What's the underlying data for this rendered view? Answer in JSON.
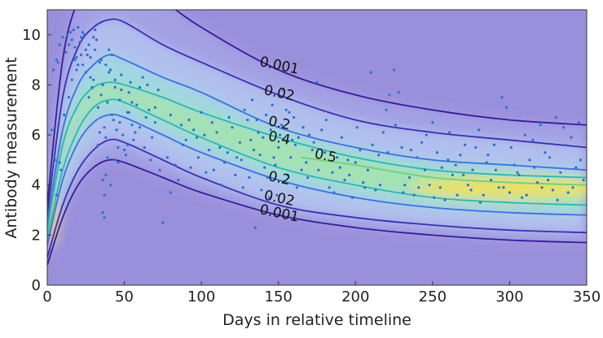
{
  "chart_data": {
    "type": "heatmap",
    "title": "",
    "xlabel": "Days in relative timeline",
    "ylabel": "Antibody measurement",
    "xlim": [
      0,
      350
    ],
    "ylim": [
      0,
      11
    ],
    "xticks": [
      0,
      50,
      100,
      150,
      200,
      250,
      300,
      350
    ],
    "yticks": [
      0,
      2,
      4,
      6,
      8,
      10
    ],
    "grid": false,
    "colors": {
      "background": "#9a8fdb",
      "level_0.001": "#3b1a9a",
      "level_0.02": "#3a2fb0",
      "level_0.2": "#3d6fe0",
      "level_0.4": "#29b8b0",
      "level_0.5": "#6fd07a",
      "density_peak": "#f4e05a",
      "points": "#2a6fd0"
    },
    "series": [
      {
        "name": "0.001",
        "type": "contour",
        "side": "upper",
        "x": [
          0,
          10,
          20,
          30,
          40,
          50,
          75,
          100,
          150,
          200,
          250,
          300,
          350
        ],
        "y": [
          3.2,
          9.0,
          11.4,
          12.4,
          12.8,
          12.6,
          11.4,
          10.3,
          8.6,
          7.6,
          7.0,
          6.6,
          6.4
        ]
      },
      {
        "name": "0.02",
        "type": "contour",
        "side": "upper",
        "x": [
          0,
          10,
          20,
          30,
          40,
          50,
          75,
          100,
          150,
          200,
          250,
          300,
          350
        ],
        "y": [
          2.8,
          7.5,
          9.5,
          10.3,
          10.6,
          10.5,
          9.6,
          8.9,
          7.6,
          6.6,
          6.1,
          5.8,
          5.5
        ]
      },
      {
        "name": "0.2",
        "type": "contour",
        "side": "upper",
        "x": [
          0,
          10,
          20,
          30,
          40,
          50,
          75,
          100,
          150,
          200,
          250,
          300,
          350
        ],
        "y": [
          2.5,
          6.2,
          8.0,
          8.8,
          9.2,
          9.0,
          8.3,
          7.7,
          6.3,
          5.5,
          5.0,
          4.8,
          4.6
        ]
      },
      {
        "name": "0.4",
        "type": "contour",
        "side": "upper",
        "x": [
          0,
          10,
          20,
          30,
          40,
          50,
          75,
          100,
          150,
          200,
          250,
          300,
          350
        ],
        "y": [
          2.2,
          5.6,
          7.2,
          7.9,
          8.1,
          8.0,
          7.5,
          6.9,
          5.9,
          5.1,
          4.6,
          4.4,
          4.3
        ]
      },
      {
        "name": "0.5",
        "type": "contour",
        "side": "core",
        "x": [
          165,
          200,
          250,
          300,
          350
        ],
        "y": [
          5.1,
          4.8,
          4.3,
          4.1,
          4.0
        ]
      },
      {
        "name": "0.4",
        "type": "contour",
        "side": "lower",
        "x": [
          0,
          10,
          20,
          30,
          40,
          50,
          75,
          100,
          150,
          200,
          250,
          300,
          350
        ],
        "y": [
          1.9,
          4.6,
          6.2,
          7.1,
          7.4,
          7.3,
          6.6,
          5.9,
          4.7,
          4.0,
          3.5,
          3.3,
          3.2
        ]
      },
      {
        "name": "0.2",
        "type": "contour",
        "side": "lower",
        "x": [
          0,
          10,
          20,
          30,
          40,
          50,
          75,
          100,
          150,
          200,
          250,
          300,
          350
        ],
        "y": [
          1.6,
          4.2,
          5.7,
          6.5,
          6.8,
          6.7,
          6.0,
          5.3,
          4.2,
          3.5,
          3.1,
          2.9,
          2.8
        ]
      },
      {
        "name": "0.02",
        "type": "contour",
        "side": "lower",
        "x": [
          0,
          10,
          20,
          30,
          40,
          50,
          75,
          100,
          150,
          200,
          250,
          300,
          350
        ],
        "y": [
          1.1,
          3.2,
          4.6,
          5.4,
          5.8,
          5.7,
          5.0,
          4.3,
          3.2,
          2.7,
          2.4,
          2.2,
          2.1
        ]
      },
      {
        "name": "0.001",
        "type": "contour",
        "side": "lower",
        "x": [
          0,
          10,
          20,
          30,
          40,
          50,
          75,
          100,
          150,
          200,
          250,
          300,
          350
        ],
        "y": [
          0.8,
          2.7,
          4.0,
          4.7,
          5.0,
          4.9,
          4.3,
          3.7,
          2.8,
          2.3,
          2.0,
          1.8,
          1.7
        ]
      }
    ],
    "contour_labels": [
      {
        "text": "0.001",
        "x": 150,
        "y": 8.6
      },
      {
        "text": "0.02",
        "x": 150,
        "y": 7.5
      },
      {
        "text": "0.2",
        "x": 150,
        "y": 6.3
      },
      {
        "text": "0.4",
        "x": 150,
        "y": 5.7
      },
      {
        "text": "0.5",
        "x": 180,
        "y": 5.0
      },
      {
        "text": "0.2",
        "x": 150,
        "y": 4.1
      },
      {
        "text": "0.02",
        "x": 150,
        "y": 3.3
      },
      {
        "text": "0.001",
        "x": 150,
        "y": 2.7
      }
    ],
    "scatter": [
      [
        3,
        6.2
      ],
      [
        4,
        8.6
      ],
      [
        5,
        5.0
      ],
      [
        6,
        9.0
      ],
      [
        7,
        8.9
      ],
      [
        8,
        9.6
      ],
      [
        9,
        4.6
      ],
      [
        10,
        9.9
      ],
      [
        12,
        9.3
      ],
      [
        13,
        10.0
      ],
      [
        14,
        9.6
      ],
      [
        15,
        10.1
      ],
      [
        16,
        9.8
      ],
      [
        17,
        10.2
      ],
      [
        18,
        9.5
      ],
      [
        19,
        9.1
      ],
      [
        20,
        10.3
      ],
      [
        21,
        9.7
      ],
      [
        22,
        9.9
      ],
      [
        23,
        8.8
      ],
      [
        24,
        10.0
      ],
      [
        25,
        9.4
      ],
      [
        26,
        9.2
      ],
      [
        27,
        7.5
      ],
      [
        28,
        8.3
      ],
      [
        29,
        7.9
      ],
      [
        30,
        8.2
      ],
      [
        31,
        10.2
      ],
      [
        32,
        9.8
      ],
      [
        33,
        7.1
      ],
      [
        34,
        6.1
      ],
      [
        35,
        7.6
      ],
      [
        36,
        8.0
      ],
      [
        37,
        6.3
      ],
      [
        38,
        5.9
      ],
      [
        39,
        7.3
      ],
      [
        40,
        9.4
      ],
      [
        41,
        8.6
      ],
      [
        42,
        6.8
      ],
      [
        43,
        6.6
      ],
      [
        44,
        7.9
      ],
      [
        45,
        6.2
      ],
      [
        46,
        5.5
      ],
      [
        47,
        7.4
      ],
      [
        48,
        8.4
      ],
      [
        49,
        6.0
      ],
      [
        50,
        5.4
      ],
      [
        51,
        5.2
      ],
      [
        52,
        6.9
      ],
      [
        53,
        7.7
      ],
      [
        54,
        8.1
      ],
      [
        55,
        6.4
      ],
      [
        56,
        5.8
      ],
      [
        58,
        7.2
      ],
      [
        60,
        7.9
      ],
      [
        62,
        8.3
      ],
      [
        64,
        6.7
      ],
      [
        66,
        7.0
      ],
      [
        68,
        5.9
      ],
      [
        70,
        6.5
      ],
      [
        72,
        7.8
      ],
      [
        36,
        4.2
      ],
      [
        37,
        3.6
      ],
      [
        38,
        4.4
      ],
      [
        39,
        5.1
      ],
      [
        36,
        2.9
      ],
      [
        37,
        2.7
      ],
      [
        33,
        5.6
      ],
      [
        41,
        4.0
      ],
      [
        44,
        5.0
      ],
      [
        46,
        4.9
      ],
      [
        52,
        5.6
      ],
      [
        75,
        2.5
      ],
      [
        80,
        3.7
      ],
      [
        85,
        4.2
      ],
      [
        90,
        5.8
      ],
      [
        95,
        6.2
      ],
      [
        100,
        6.9
      ],
      [
        105,
        5.4
      ],
      [
        110,
        6.1
      ],
      [
        115,
        4.9
      ],
      [
        120,
        6.3
      ],
      [
        125,
        5.7
      ],
      [
        128,
        7.0
      ],
      [
        130,
        6.6
      ],
      [
        133,
        7.4
      ],
      [
        135,
        2.3
      ],
      [
        138,
        5.2
      ],
      [
        140,
        5.9
      ],
      [
        142,
        6.8
      ],
      [
        145,
        6.2
      ],
      [
        148,
        4.8
      ],
      [
        150,
        5.5
      ],
      [
        152,
        6.4
      ],
      [
        155,
        7.0
      ],
      [
        158,
        5.1
      ],
      [
        160,
        6.7
      ],
      [
        163,
        5.9
      ],
      [
        165,
        4.6
      ],
      [
        170,
        6.0
      ],
      [
        175,
        8.1
      ],
      [
        180,
        5.3
      ],
      [
        185,
        4.5
      ],
      [
        190,
        4.7
      ],
      [
        195,
        5.0
      ],
      [
        200,
        4.9
      ],
      [
        205,
        4.1
      ],
      [
        210,
        8.5
      ],
      [
        215,
        5.2
      ],
      [
        220,
        7.0
      ],
      [
        222,
        7.6
      ],
      [
        225,
        8.6
      ],
      [
        228,
        7.7
      ],
      [
        230,
        5.5
      ],
      [
        235,
        4.3
      ],
      [
        240,
        5.1
      ],
      [
        245,
        4.6
      ],
      [
        250,
        6.5
      ],
      [
        255,
        3.9
      ],
      [
        260,
        5.0
      ],
      [
        265,
        4.8
      ],
      [
        270,
        4.4
      ],
      [
        275,
        3.8
      ],
      [
        280,
        6.2
      ],
      [
        285,
        4.9
      ],
      [
        290,
        5.6
      ],
      [
        295,
        7.5
      ],
      [
        298,
        7.1
      ],
      [
        300,
        3.7
      ],
      [
        305,
        4.5
      ],
      [
        310,
        6.0
      ],
      [
        315,
        5.8
      ],
      [
        320,
        6.4
      ],
      [
        325,
        4.2
      ],
      [
        330,
        6.7
      ],
      [
        335,
        6.3
      ],
      [
        340,
        5.9
      ],
      [
        345,
        6.5
      ],
      [
        18,
        9.0
      ],
      [
        20,
        8.8
      ],
      [
        23,
        10.1
      ],
      [
        27,
        9.6
      ],
      [
        30,
        9.9
      ],
      [
        34,
        8.9
      ],
      [
        40,
        8.5
      ],
      [
        44,
        8.2
      ],
      [
        47,
        6.5
      ],
      [
        55,
        7.3
      ],
      [
        60,
        6.3
      ],
      [
        65,
        8.0
      ],
      [
        70,
        7.1
      ],
      [
        80,
        6.8
      ],
      [
        88,
        5.6
      ],
      [
        92,
        6.6
      ],
      [
        98,
        5.1
      ],
      [
        102,
        6.0
      ],
      [
        108,
        4.6
      ],
      [
        112,
        5.5
      ],
      [
        118,
        6.7
      ],
      [
        122,
        4.4
      ],
      [
        126,
        5.0
      ],
      [
        132,
        5.8
      ],
      [
        136,
        6.6
      ],
      [
        139,
        3.8
      ],
      [
        143,
        4.3
      ],
      [
        146,
        7.2
      ],
      [
        149,
        3.6
      ],
      [
        153,
        7.8
      ],
      [
        156,
        4.4
      ],
      [
        161,
        5.6
      ],
      [
        168,
        4.9
      ],
      [
        172,
        5.4
      ],
      [
        178,
        6.2
      ],
      [
        183,
        3.9
      ],
      [
        188,
        5.1
      ],
      [
        193,
        4.2
      ],
      [
        198,
        3.5
      ],
      [
        203,
        5.4
      ],
      [
        208,
        4.6
      ],
      [
        213,
        3.8
      ],
      [
        218,
        6.1
      ],
      [
        232,
        4.0
      ],
      [
        238,
        3.6
      ],
      [
        243,
        5.7
      ],
      [
        248,
        4.0
      ],
      [
        253,
        5.3
      ],
      [
        258,
        3.4
      ],
      [
        263,
        4.4
      ],
      [
        268,
        5.2
      ],
      [
        273,
        4.0
      ],
      [
        278,
        5.5
      ],
      [
        283,
        3.6
      ],
      [
        288,
        4.2
      ],
      [
        293,
        3.9
      ],
      [
        303,
        4.8
      ],
      [
        308,
        3.5
      ],
      [
        313,
        5.0
      ],
      [
        318,
        4.1
      ],
      [
        323,
        5.3
      ],
      [
        328,
        3.8
      ],
      [
        333,
        4.5
      ],
      [
        338,
        3.7
      ],
      [
        343,
        4.7
      ],
      [
        348,
        4.2
      ],
      [
        6,
        3.6
      ],
      [
        8,
        4.9
      ],
      [
        11,
        6.8
      ],
      [
        14,
        7.5
      ],
      [
        16,
        8.2
      ],
      [
        19,
        8.6
      ],
      [
        22,
        9.2
      ],
      [
        25,
        8.5
      ],
      [
        28,
        9.1
      ],
      [
        31,
        9.4
      ],
      [
        35,
        9.0
      ],
      [
        38,
        8.8
      ],
      [
        42,
        9.2
      ],
      [
        48,
        7.8
      ],
      [
        53,
        6.9
      ],
      [
        57,
        6.1
      ],
      [
        63,
        5.5
      ],
      [
        67,
        5.0
      ],
      [
        73,
        4.6
      ],
      [
        78,
        5.1
      ],
      [
        83,
        4.8
      ],
      [
        87,
        6.4
      ],
      [
        93,
        4.7
      ],
      [
        97,
        5.9
      ],
      [
        103,
        4.5
      ],
      [
        107,
        6.5
      ],
      [
        113,
        4.0
      ],
      [
        117,
        5.3
      ],
      [
        123,
        5.1
      ],
      [
        127,
        3.9
      ],
      [
        131,
        4.3
      ],
      [
        134,
        5.4
      ],
      [
        137,
        6.1
      ],
      [
        141,
        4.7
      ],
      [
        144,
        3.5
      ],
      [
        147,
        5.1
      ],
      [
        151,
        6.0
      ],
      [
        154,
        4.1
      ],
      [
        157,
        6.9
      ],
      [
        159,
        5.8
      ],
      [
        162,
        3.9
      ],
      [
        166,
        6.3
      ],
      [
        169,
        4.3
      ],
      [
        173,
        5.7
      ],
      [
        176,
        4.6
      ],
      [
        181,
        6.6
      ],
      [
        186,
        3.7
      ],
      [
        191,
        5.9
      ],
      [
        196,
        4.4
      ],
      [
        201,
        6.3
      ],
      [
        206,
        3.9
      ],
      [
        211,
        5.6
      ],
      [
        216,
        4.0
      ],
      [
        221,
        5.3
      ],
      [
        226,
        6.4
      ],
      [
        231,
        3.7
      ],
      [
        236,
        5.4
      ],
      [
        241,
        3.9
      ],
      [
        246,
        6.0
      ],
      [
        251,
        3.5
      ],
      [
        256,
        4.7
      ],
      [
        261,
        6.1
      ],
      [
        266,
        3.6
      ],
      [
        271,
        5.6
      ],
      [
        276,
        4.6
      ],
      [
        281,
        3.3
      ],
      [
        286,
        5.2
      ],
      [
        291,
        4.6
      ],
      [
        296,
        3.9
      ],
      [
        301,
        5.5
      ],
      [
        306,
        4.4
      ],
      [
        311,
        3.6
      ],
      [
        316,
        4.7
      ],
      [
        321,
        3.9
      ],
      [
        326,
        5.1
      ],
      [
        331,
        3.4
      ],
      [
        336,
        5.6
      ],
      [
        341,
        3.9
      ],
      [
        346,
        5.0
      ]
    ]
  }
}
